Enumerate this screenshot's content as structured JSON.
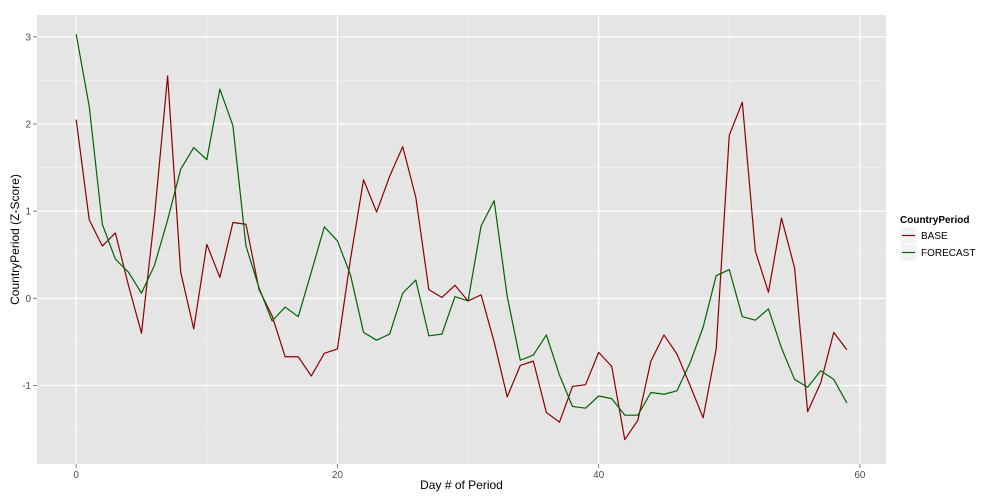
{
  "chart_data": {
    "type": "line",
    "xlabel": "Day # of Period",
    "ylabel": "CountryPeriod (Z-Score)",
    "xlim": [
      -3,
      62
    ],
    "ylim": [
      -1.9,
      3.25
    ],
    "x_ticks": [
      0,
      20,
      40,
      60
    ],
    "y_ticks": [
      -1,
      0,
      1,
      2,
      3
    ],
    "grid": true,
    "legend": {
      "title": "CountryPeriod",
      "position": "right"
    },
    "x": [
      0,
      1,
      2,
      3,
      4,
      5,
      6,
      7,
      8,
      9,
      10,
      11,
      12,
      13,
      14,
      15,
      16,
      17,
      18,
      19,
      20,
      21,
      22,
      23,
      24,
      25,
      26,
      27,
      28,
      29,
      30,
      31,
      32,
      33,
      34,
      35,
      36,
      37,
      38,
      39,
      40,
      41,
      42,
      43,
      44,
      45,
      46,
      47,
      48,
      49,
      50,
      51,
      52,
      53,
      54,
      55,
      56,
      57,
      58,
      59
    ],
    "series": [
      {
        "name": "BASE",
        "color": "#8b0000",
        "values": [
          2.05,
          0.9,
          0.6,
          0.75,
          0.15,
          -0.4,
          0.95,
          2.55,
          0.3,
          -0.35,
          0.62,
          0.24,
          0.87,
          0.85,
          0.1,
          -0.2,
          -0.67,
          -0.67,
          -0.89,
          -0.63,
          -0.58,
          0.45,
          1.36,
          0.99,
          1.4,
          1.74,
          1.16,
          0.1,
          0.01,
          0.15,
          -0.03,
          0.04,
          -0.5,
          -1.13,
          -0.77,
          -0.72,
          -1.31,
          -1.42,
          -1.01,
          -0.99,
          -0.62,
          -0.78,
          -1.62,
          -1.4,
          -0.72,
          -0.42,
          -0.64,
          -1.0,
          -1.37,
          -0.58,
          1.87,
          2.25,
          0.54,
          0.07,
          0.92,
          0.35,
          -1.3,
          -0.97,
          -0.39,
          -0.59
        ]
      },
      {
        "name": "FORECAST",
        "color": "#006400",
        "values": [
          3.03,
          2.2,
          0.85,
          0.45,
          0.3,
          0.06,
          0.38,
          0.9,
          1.48,
          1.73,
          1.59,
          2.4,
          1.98,
          0.6,
          0.12,
          -0.26,
          -0.1,
          -0.21,
          0.3,
          0.82,
          0.66,
          0.27,
          -0.39,
          -0.48,
          -0.41,
          0.06,
          0.21,
          -0.43,
          -0.41,
          0.02,
          -0.03,
          0.83,
          1.12,
          0.02,
          -0.71,
          -0.65,
          -0.42,
          -0.88,
          -1.24,
          -1.26,
          -1.12,
          -1.15,
          -1.34,
          -1.34,
          -1.08,
          -1.1,
          -1.06,
          -0.74,
          -0.33,
          0.26,
          0.33,
          -0.21,
          -0.25,
          -0.12,
          -0.57,
          -0.93,
          -1.02,
          -0.83,
          -0.93,
          -1.2
        ]
      }
    ]
  }
}
